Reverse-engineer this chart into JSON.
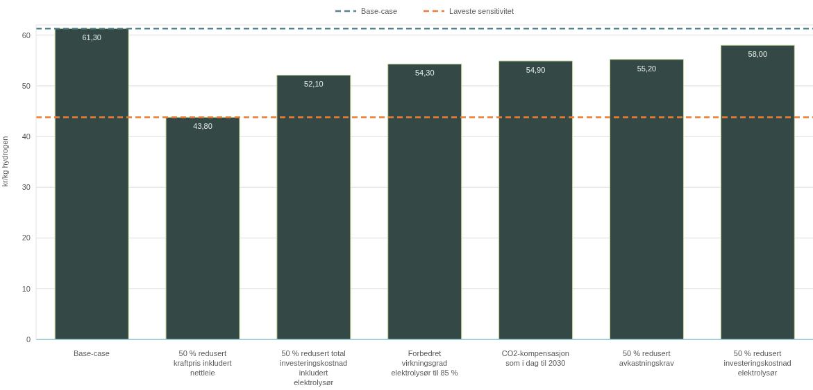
{
  "chart_data": {
    "type": "bar",
    "ylabel": "kr/kg hydrogen",
    "categories": [
      "Base-case",
      "50 % redusert kraftpris inkludert nettleie",
      "50 % redusert total investeringskostnad inkludert elektrolysør",
      "Forbedret virkningsgrad elektrolysør til 85 %",
      "CO2-kompensasjon som i dag til 2030",
      "50 % redusert avkastningskrav",
      "50 % redusert investeringskostnad elektrolysør"
    ],
    "values": [
      61.3,
      43.8,
      52.1,
      54.3,
      54.9,
      55.2,
      58.0
    ],
    "color": "#344946",
    "value_labels": [
      "61,30",
      "43,80",
      "52,10",
      "54,30",
      "54,90",
      "55,20",
      "58,00"
    ],
    "ylim": [
      0,
      62
    ],
    "yticks": [
      0,
      10,
      20,
      30,
      40,
      50,
      60
    ],
    "grid": "y",
    "legend": "top",
    "ref_lines": [
      {
        "axis": "y",
        "value": 61.3,
        "label": "Base-case",
        "color": "#56818f",
        "line_style": "dashed"
      },
      {
        "axis": "y",
        "value": 43.8,
        "label": "Laveste sensitivitet",
        "color": "#ed7d31",
        "line_style": "dashed"
      }
    ]
  }
}
